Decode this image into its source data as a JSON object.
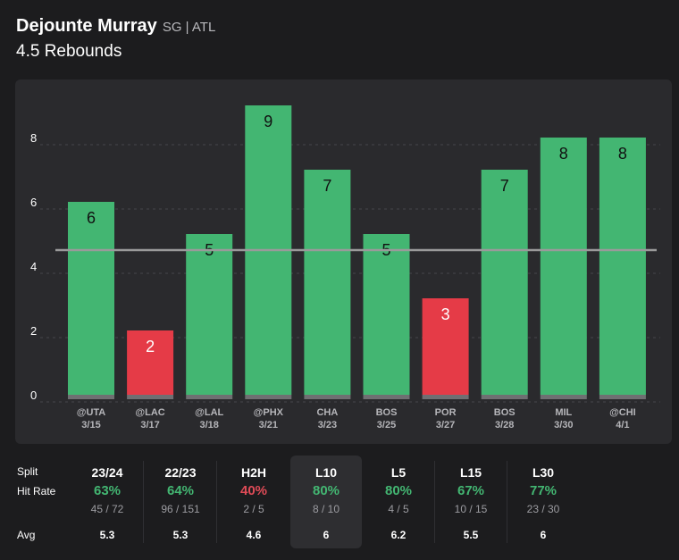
{
  "player": {
    "name": "Dejounte Murray",
    "meta": "SG | ATL",
    "line": "4.5 Rebounds"
  },
  "colors": {
    "over": "#43b672",
    "under": "#e53b47",
    "line": "#9a9a9a",
    "grid": "#47474b",
    "base": "#6f6f72",
    "hit": "#43b672",
    "miss": "#e04b57"
  },
  "chart_data": {
    "type": "bar",
    "title": "4.5 Rebounds",
    "threshold": 4.5,
    "ylim": [
      0,
      10
    ],
    "yticks": [
      0,
      2,
      4,
      6,
      8
    ],
    "games": [
      {
        "opp": "@UTA",
        "date": "3/15",
        "value": 6
      },
      {
        "opp": "@LAC",
        "date": "3/17",
        "value": 2
      },
      {
        "opp": "@LAL",
        "date": "3/18",
        "value": 5
      },
      {
        "opp": "@PHX",
        "date": "3/21",
        "value": 9
      },
      {
        "opp": "CHA",
        "date": "3/23",
        "value": 7
      },
      {
        "opp": "BOS",
        "date": "3/25",
        "value": 5
      },
      {
        "opp": "POR",
        "date": "3/27",
        "value": 3
      },
      {
        "opp": "BOS",
        "date": "3/28",
        "value": 7
      },
      {
        "opp": "MIL",
        "date": "3/30",
        "value": 8
      },
      {
        "opp": "@CHI",
        "date": "4/1",
        "value": 8
      }
    ]
  },
  "stats": {
    "row_labels": {
      "split": "Split",
      "hit_rate": "Hit Rate",
      "avg": "Avg"
    },
    "columns": [
      {
        "label": "23/24",
        "pct": "63%",
        "frac": "45 / 72",
        "avg": "5.3",
        "hit": true,
        "active": false
      },
      {
        "label": "22/23",
        "pct": "64%",
        "frac": "96 / 151",
        "avg": "5.3",
        "hit": true,
        "active": false
      },
      {
        "label": "H2H",
        "pct": "40%",
        "frac": "2 / 5",
        "avg": "4.6",
        "hit": false,
        "active": false
      },
      {
        "label": "L10",
        "pct": "80%",
        "frac": "8 / 10",
        "avg": "6",
        "hit": true,
        "active": true
      },
      {
        "label": "L5",
        "pct": "80%",
        "frac": "4 / 5",
        "avg": "6.2",
        "hit": true,
        "active": false
      },
      {
        "label": "L15",
        "pct": "67%",
        "frac": "10 / 15",
        "avg": "5.5",
        "hit": true,
        "active": false
      },
      {
        "label": "L30",
        "pct": "77%",
        "frac": "23 / 30",
        "avg": "6",
        "hit": true,
        "active": false
      }
    ]
  }
}
